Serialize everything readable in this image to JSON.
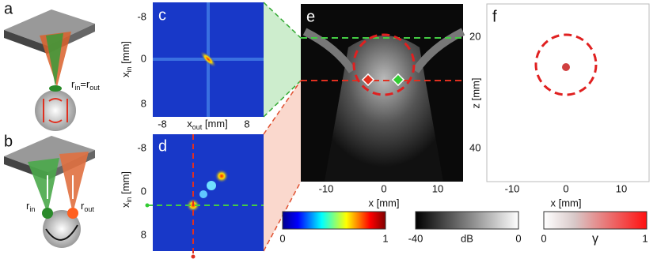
{
  "panels": {
    "a": {
      "letter": "a",
      "label": [
        "r",
        "in",
        "=r",
        "out"
      ]
    },
    "b": {
      "letter": "b",
      "r_in": [
        "r",
        "in"
      ],
      "r_out": [
        "r",
        "out"
      ]
    },
    "c": {
      "letter": "c",
      "y_label": [
        "x",
        "in",
        " [mm]"
      ],
      "x_label": [
        "x",
        "out",
        " [mm]"
      ],
      "yticks": [
        "-8",
        "0",
        "8"
      ],
      "xticks": [
        "-8",
        "8"
      ]
    },
    "d": {
      "letter": "d",
      "y_label": [
        "x",
        "in",
        " [mm]"
      ],
      "yticks": [
        "-8",
        "0",
        "8"
      ]
    },
    "e": {
      "letter": "e",
      "x_label": "x [mm]",
      "xticks": [
        "-10",
        "0",
        "10"
      ],
      "yticks": [
        "20",
        "40"
      ]
    },
    "f": {
      "letter": "f",
      "x_label": "x [mm]",
      "y_label": "z [mm]",
      "xticks": [
        "-10",
        "0",
        "10"
      ]
    }
  },
  "colorbars": [
    {
      "min": "0",
      "max": "1"
    },
    {
      "min": "-40",
      "label": "dB",
      "max": "0"
    },
    {
      "min": "0",
      "label": "γ",
      "max": "1"
    }
  ]
}
